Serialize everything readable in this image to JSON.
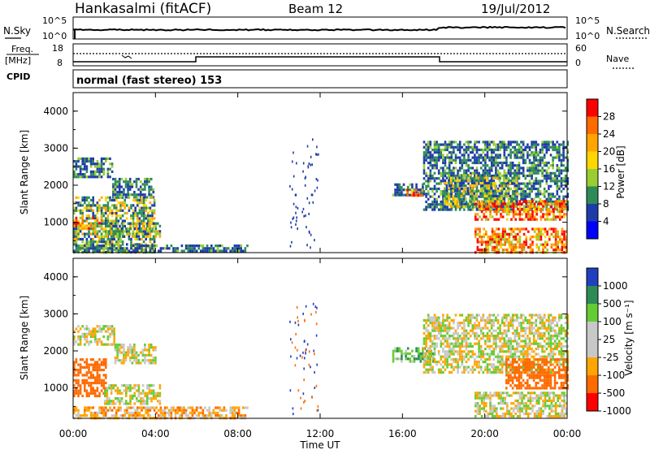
{
  "header": {
    "station": "Hankasalmi (fitACF)",
    "beam": "Beam 12",
    "date": "19/Jul/2012"
  },
  "noise_panel": {
    "left_label": "N.Sky",
    "left_ticks": [
      "10^5",
      "10^0"
    ],
    "right_label": "N.Search",
    "right_ticks": [
      "10^5",
      "10^0"
    ]
  },
  "freq_panel": {
    "left_label_line1": "Freq.",
    "left_label_line2": "[MHz]",
    "left_ticks": [
      "18",
      "8"
    ],
    "right_label": "Nave",
    "right_ticks": [
      "60",
      "0"
    ],
    "cpid_label": "CPID",
    "cpid_text": "normal (fast stereo) 153"
  },
  "colorbars": {
    "power": {
      "label": "Power [dB]",
      "ticks": [
        "28",
        "24",
        "20",
        "16",
        "12",
        "8",
        "4"
      ],
      "colors": [
        "#ff0000",
        "#ff6a00",
        "#ffa500",
        "#ffd600",
        "#9acd32",
        "#2e8b57",
        "#1e3ca8",
        "#0000ff"
      ]
    },
    "velocity": {
      "label": "Velocity [m s⁻¹]",
      "ticks": [
        "1000",
        "500",
        "100",
        "25",
        "-25",
        "-100",
        "-500",
        "-1000"
      ],
      "colors": [
        "#2040c0",
        "#2e8b57",
        "#66cc33",
        "#c8c8c8",
        "#c8c8c8",
        "#ffa500",
        "#ff6a00",
        "#ff0000"
      ]
    }
  },
  "chart_data": [
    {
      "type": "heatmap",
      "quantity": "power",
      "ylabel": "Slant Range [km]",
      "ylim": [
        180,
        4500
      ],
      "yticks": [
        "4000",
        "3000",
        "2000",
        "1000"
      ],
      "xlim": [
        0,
        24
      ],
      "regions": [
        {
          "t": [
            0.0,
            1.9
          ],
          "r": [
            2200,
            2750
          ],
          "level": "low"
        },
        {
          "t": [
            1.9,
            3.9
          ],
          "r": [
            1650,
            2200
          ],
          "level": "low"
        },
        {
          "t": [
            0.0,
            4.0
          ],
          "r": [
            200,
            1700
          ],
          "level": "mid"
        },
        {
          "t": [
            0.0,
            1.4
          ],
          "r": [
            800,
            1150
          ],
          "level": "high"
        },
        {
          "t": [
            1.5,
            4.2
          ],
          "r": [
            600,
            1000
          ],
          "level": "mid"
        },
        {
          "t": [
            0.0,
            8.5
          ],
          "r": [
            200,
            400
          ],
          "level": "low"
        },
        {
          "t": [
            15.5,
            17.0
          ],
          "r": [
            1700,
            2050
          ],
          "level": "low"
        },
        {
          "t": [
            16.2,
            17.0
          ],
          "r": [
            1700,
            1900
          ],
          "level": "high"
        },
        {
          "t": [
            17.0,
            24.0
          ],
          "r": [
            1350,
            3200
          ],
          "level": "low"
        },
        {
          "t": [
            18.0,
            21.5
          ],
          "r": [
            1450,
            2300
          ],
          "level": "mid"
        },
        {
          "t": [
            19.5,
            24.0
          ],
          "r": [
            1050,
            1600
          ],
          "level": "high"
        },
        {
          "t": [
            19.5,
            24.0
          ],
          "r": [
            200,
            850
          ],
          "level": "high"
        }
      ]
    },
    {
      "type": "heatmap",
      "quantity": "velocity",
      "ylabel": "Slant Range [km]",
      "ylim": [
        180,
        4500
      ],
      "yticks": [
        "4000",
        "3000",
        "2000",
        "1000"
      ],
      "xlabel": "Time UT",
      "xticks": [
        "00:00",
        "04:00",
        "08:00",
        "12:00",
        "16:00",
        "20:00",
        "00:00"
      ],
      "xlim": [
        0,
        24
      ],
      "regions": [
        {
          "t": [
            0.0,
            2.0
          ],
          "r": [
            2200,
            2700
          ],
          "v": 0
        },
        {
          "t": [
            2.0,
            4.0
          ],
          "r": [
            1650,
            2200
          ],
          "v": 0
        },
        {
          "t": [
            0.0,
            1.6
          ],
          "r": [
            800,
            1800
          ],
          "v": -300
        },
        {
          "t": [
            1.5,
            4.2
          ],
          "r": [
            600,
            1100
          ],
          "v": 0
        },
        {
          "t": [
            0.0,
            8.5
          ],
          "r": [
            200,
            500
          ],
          "v": -60
        },
        {
          "t": [
            15.5,
            17.5
          ],
          "r": [
            1700,
            2100
          ],
          "v": 60
        },
        {
          "t": [
            17.0,
            24.0
          ],
          "r": [
            1400,
            3000
          ],
          "v": 0
        },
        {
          "t": [
            21.0,
            24.0
          ],
          "r": [
            1000,
            1800
          ],
          "v": -400
        },
        {
          "t": [
            19.5,
            24.0
          ],
          "r": [
            200,
            900
          ],
          "v": 0
        }
      ]
    }
  ]
}
